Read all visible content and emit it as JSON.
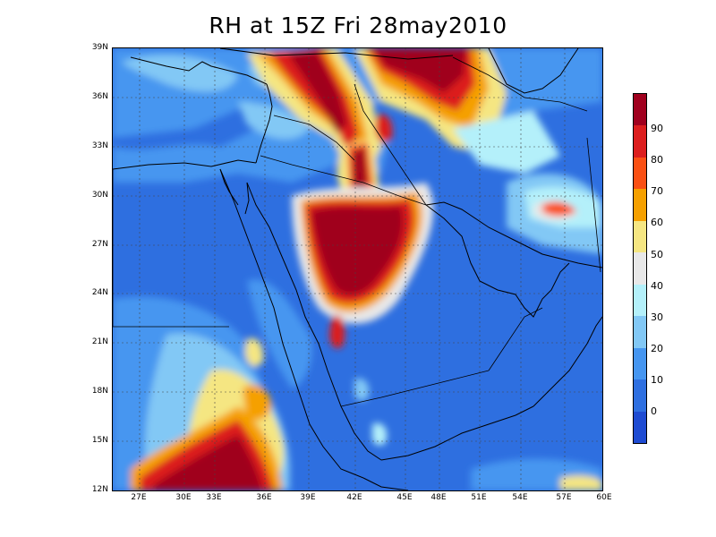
{
  "title": "RH at 15Z Fri 28may2010",
  "axes": {
    "lat_labels": [
      "39N",
      "36N",
      "33N",
      "30N",
      "27N",
      "24N",
      "21N",
      "18N",
      "15N",
      "12N"
    ],
    "lon_labels": [
      "27E",
      "30E",
      "33E",
      "36E",
      "39E",
      "42E",
      "45E",
      "48E",
      "51E",
      "54E",
      "57E",
      "60E"
    ]
  },
  "colorbar": {
    "labels": [
      "90",
      "80",
      "70",
      "60",
      "50",
      "40",
      "30",
      "20",
      "10",
      "0"
    ],
    "colors": [
      "#a0001e",
      "#dc1e1e",
      "#fa5014",
      "#f5a000",
      "#f5e682",
      "#e8e8e8",
      "#b4f0fa",
      "#82c8f5",
      "#4696f0",
      "#2e6fe0",
      "#1e4bd2"
    ]
  },
  "colors": {
    "background": "#2e6fe0",
    "land_outline": "#000000",
    "grid": "#555555"
  }
}
